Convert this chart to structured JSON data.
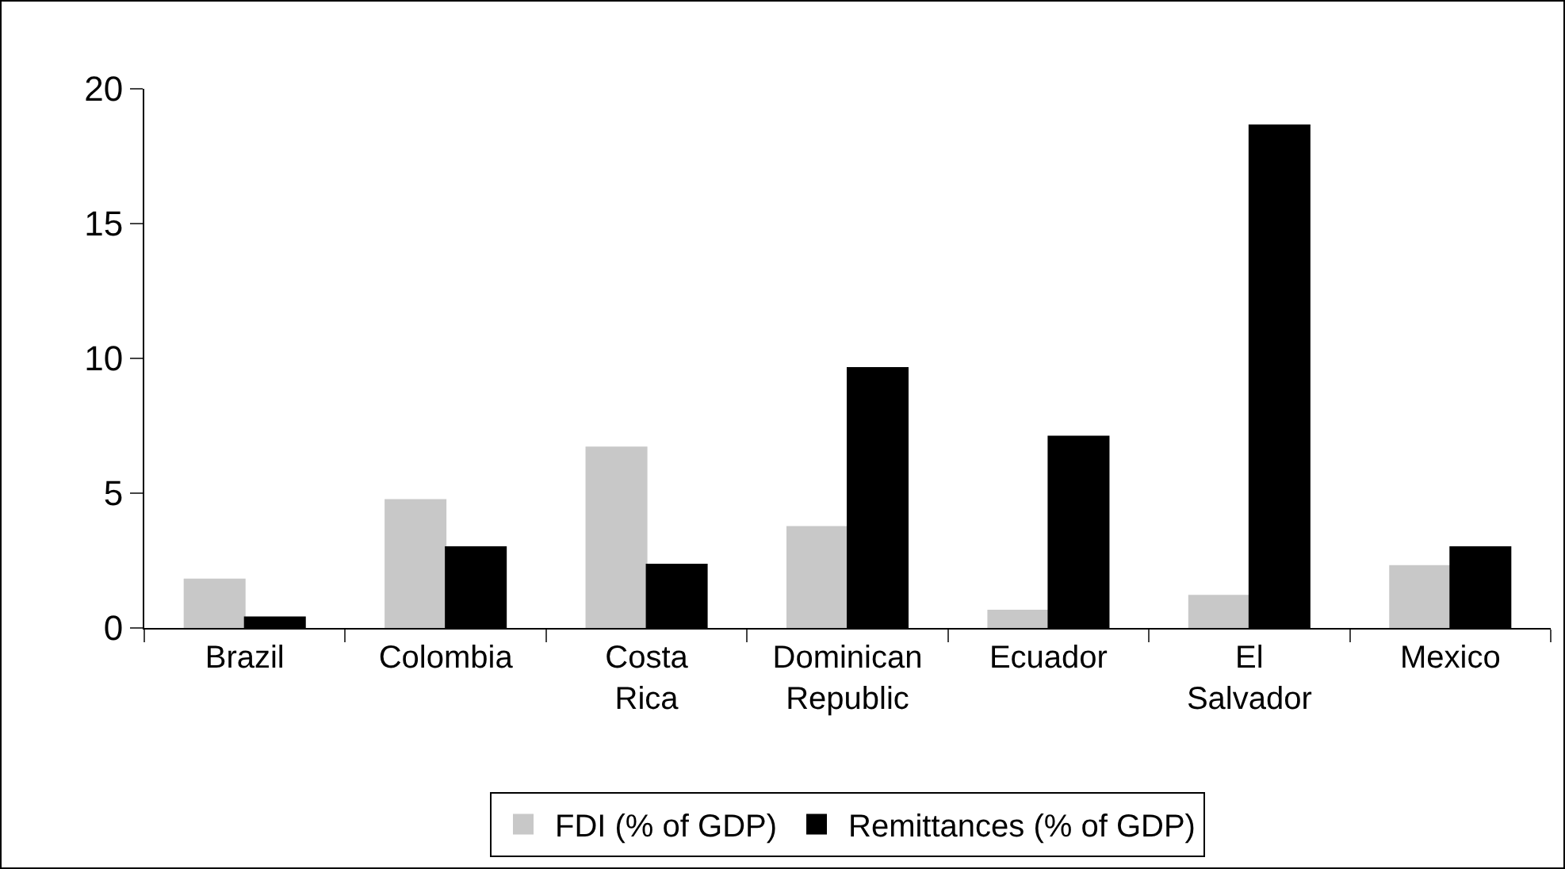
{
  "chart_data": {
    "type": "bar",
    "categories": [
      "Brazil",
      "Colombia",
      "Costa Rica",
      "Dominican Republic",
      "Ecuador",
      "El Salvador",
      "Mexico"
    ],
    "series": [
      {
        "name": "FDI (% of GDP)",
        "color": "#c8c8c8",
        "values": [
          1.8,
          4.75,
          6.7,
          3.75,
          0.65,
          1.2,
          2.3
        ]
      },
      {
        "name": "Remittances (% of GDP)",
        "color": "#000000",
        "values": [
          0.4,
          3.0,
          2.35,
          9.65,
          7.1,
          18.65,
          3.0
        ]
      }
    ],
    "ylim": [
      0,
      20
    ],
    "yticks": [
      0,
      5,
      10,
      15,
      20
    ],
    "grid": false,
    "legend": "bottom"
  }
}
